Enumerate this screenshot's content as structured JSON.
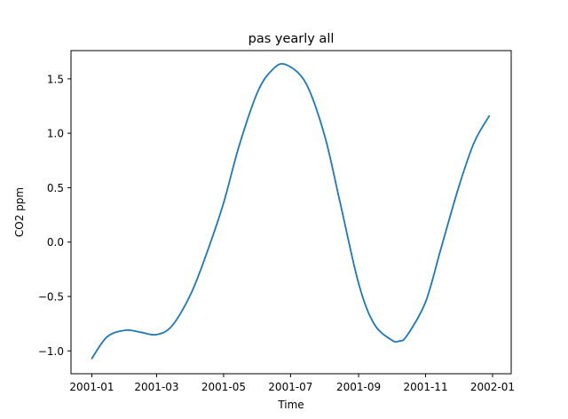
{
  "chart_data": {
    "type": "line",
    "title": "pas yearly all",
    "xlabel": "Time",
    "ylabel": "CO2 ppm",
    "grid": false,
    "legend": "none",
    "xlim": [
      "2000-12-13",
      "2002-01-18"
    ],
    "ylim": [
      -1.21,
      1.76
    ],
    "x_ticks": [
      "2001-01",
      "2001-03",
      "2001-05",
      "2001-07",
      "2001-09",
      "2001-11",
      "2002-01"
    ],
    "y_ticks": [
      "−1.0",
      "−0.5",
      "0.0",
      "0.5",
      "1.0",
      "1.5"
    ],
    "y_tick_values": [
      -1.0,
      -0.5,
      0.0,
      0.5,
      1.0,
      1.5
    ],
    "series": [
      {
        "color": "#1f77b4",
        "x": [
          "2001-01-01",
          "2001-01-15",
          "2001-02-01",
          "2001-02-15",
          "2001-03-01",
          "2001-03-15",
          "2001-04-01",
          "2001-04-15",
          "2001-05-01",
          "2001-05-15",
          "2001-06-01",
          "2001-06-15",
          "2001-06-27",
          "2001-07-15",
          "2001-08-01",
          "2001-08-15",
          "2001-09-01",
          "2001-09-15",
          "2001-10-01",
          "2001-10-08",
          "2001-10-15",
          "2001-11-01",
          "2001-11-15",
          "2001-12-01",
          "2001-12-15",
          "2001-12-29"
        ],
        "y": [
          -1.07,
          -0.87,
          -0.81,
          -0.83,
          -0.85,
          -0.77,
          -0.48,
          -0.12,
          0.36,
          0.88,
          1.38,
          1.59,
          1.63,
          1.46,
          0.98,
          0.37,
          -0.38,
          -0.75,
          -0.9,
          -0.91,
          -0.86,
          -0.55,
          -0.06,
          0.5,
          0.91,
          1.16
        ]
      }
    ]
  }
}
